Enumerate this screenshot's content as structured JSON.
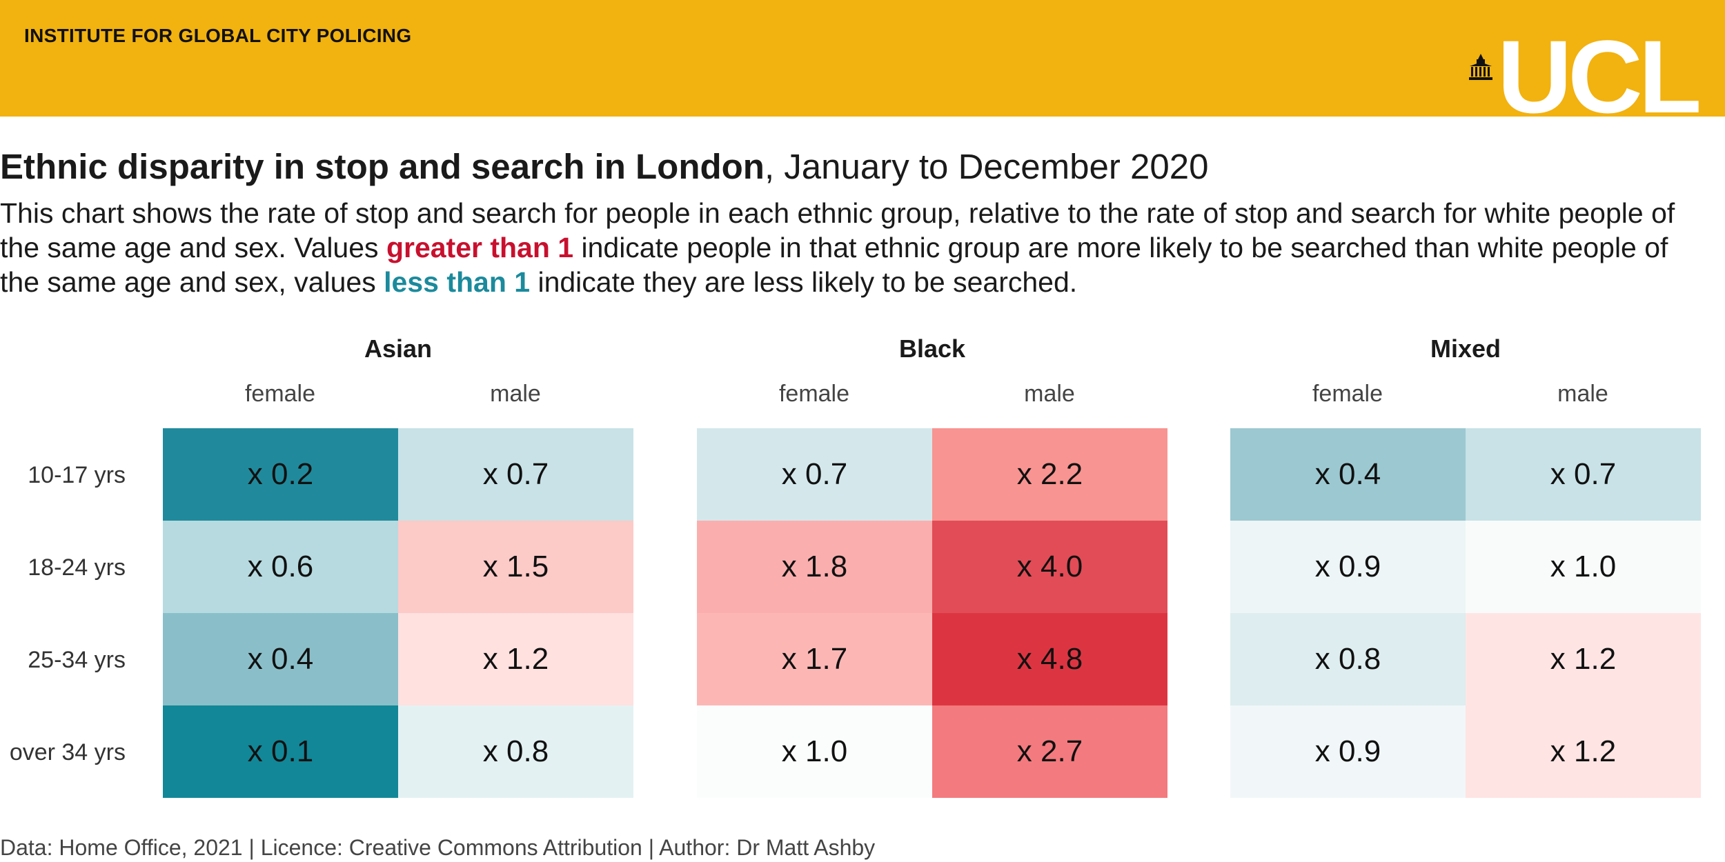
{
  "header": {
    "institute": "INSTITUTE FOR GLOBAL CITY POLICING",
    "logo_text": "UCL",
    "background_color": "#f2b20f"
  },
  "title": {
    "bold": "Ethnic disparity in stop and search in London",
    "rest": ", January to December 2020"
  },
  "description": {
    "part1": "This chart shows the rate of stop and search for people in each ethnic group, relative to the rate of stop and search for white people of the same age and sex. Values ",
    "greater": "greater than 1",
    "part2": " indicate people in that ethnic group are more likely to be searched than white people of the same age and sex, values ",
    "less": "less than 1",
    "part3": " indicate they are less likely to be searched.",
    "greater_color": "#c8102e",
    "less_color": "#1b8a9c"
  },
  "chart_data": {
    "type": "heatmap",
    "panels": [
      "Asian",
      "Black",
      "Mixed"
    ],
    "columns": [
      "female",
      "male"
    ],
    "rows": [
      "10-17 yrs",
      "18-24 yrs",
      "25-34 yrs",
      "over 34 yrs"
    ],
    "value_prefix": "x ",
    "values": {
      "Asian": {
        "female": [
          0.2,
          0.6,
          0.4,
          0.1
        ],
        "male": [
          0.7,
          1.5,
          1.2,
          0.8
        ]
      },
      "Black": {
        "female": [
          0.7,
          1.8,
          1.7,
          1.0
        ],
        "male": [
          2.2,
          4.0,
          4.8,
          2.7
        ]
      },
      "Mixed": {
        "female": [
          0.4,
          0.9,
          0.8,
          0.9
        ],
        "male": [
          0.7,
          1.0,
          1.2,
          1.2
        ]
      }
    },
    "colors": {
      "Asian": {
        "female": [
          "#208a9c",
          "#b6dadf",
          "#8abfc9",
          "#128797"
        ],
        "male": [
          "#c8e2e7",
          "#fccac7",
          "#ffe1e0",
          "#e4f1f3"
        ]
      },
      "Black": {
        "female": [
          "#d4e8ec",
          "#fbaeae",
          "#fcb7b5",
          "#fbfdfd"
        ],
        "male": [
          "#f89491",
          "#e24c56",
          "#dc3541",
          "#f37a7e"
        ]
      },
      "Mixed": {
        "female": [
          "#9cc8d1",
          "#edf5f6",
          "#deedef",
          "#f1f7f8"
        ],
        "male": [
          "#c8e2e7",
          "#f9fbfb",
          "#fee5e4",
          "#fee4e3"
        ]
      }
    }
  },
  "footer": "Data: Home Office, 2021 | Licence: Creative Commons Attribution | Author: Dr Matt Ashby"
}
